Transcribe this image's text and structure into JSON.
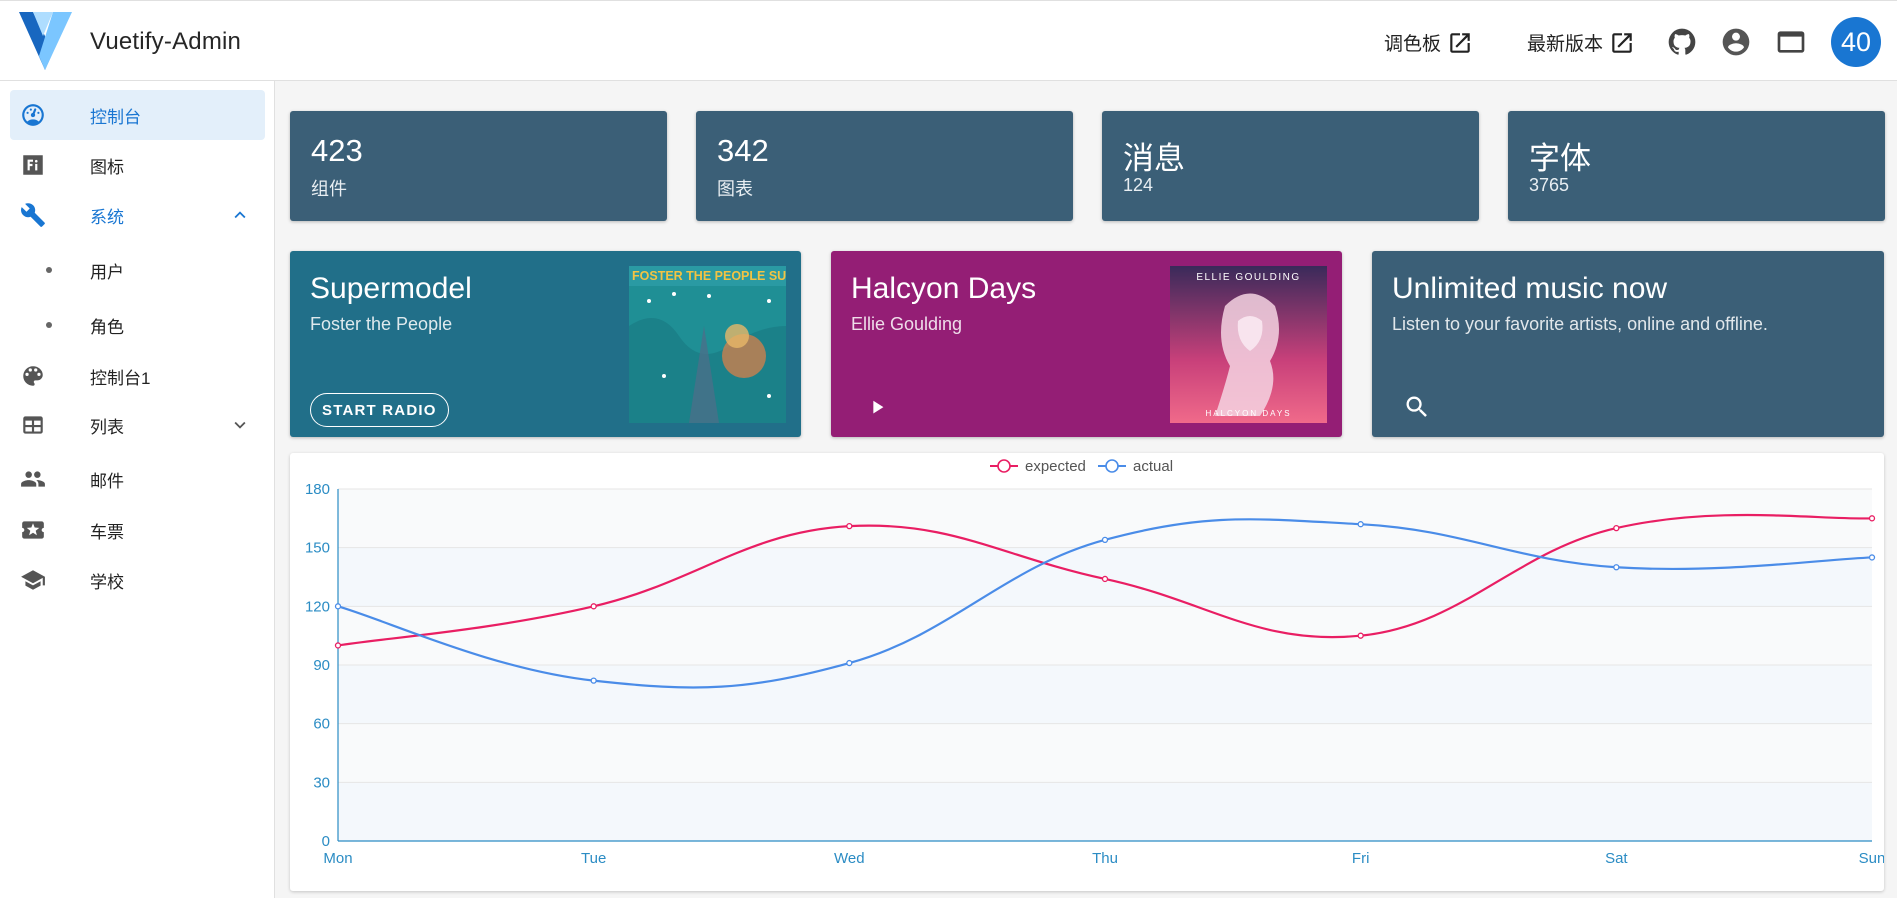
{
  "header": {
    "title": "Vuetify-Admin",
    "palette_link": "调色板",
    "latest_link": "最新版本",
    "avatar_text": "40"
  },
  "sidebar": {
    "items": [
      {
        "label": "控制台",
        "icon": "dashboard-icon"
      },
      {
        "label": "图标",
        "icon": "font-icon"
      },
      {
        "label": "系统",
        "icon": "wrench-icon"
      },
      {
        "label": "用户",
        "icon": "dot"
      },
      {
        "label": "角色",
        "icon": "dot"
      },
      {
        "label": "控制台1",
        "icon": "dashboard-icon"
      },
      {
        "label": "列表",
        "icon": "table-icon"
      },
      {
        "label": "邮件",
        "icon": "people-icon"
      },
      {
        "label": "车票",
        "icon": "ticket-icon"
      },
      {
        "label": "学校",
        "icon": "school-icon"
      }
    ]
  },
  "stats": [
    {
      "value": "423",
      "label": "组件"
    },
    {
      "value": "342",
      "label": "图表"
    },
    {
      "value": "消息",
      "label": "124"
    },
    {
      "value": "字体",
      "label": "3765"
    }
  ],
  "music": [
    {
      "title": "Supermodel",
      "subtitle": "Foster the People",
      "button": "START RADIO",
      "cover_text": "FOSTER THE PEOPLE SUPERMODEL"
    },
    {
      "title": "Halcyon Days",
      "subtitle": "Ellie Goulding",
      "cover_top": "ELLIE GOULDING",
      "cover_bottom": "HALCYON DAYS"
    },
    {
      "title": "Unlimited music now",
      "subtitle": "Listen to your favorite artists, online and offline."
    }
  ],
  "colors": {
    "primary": "#1976d2",
    "stat_card": "#3b5f77",
    "music_teal": "#216f89",
    "music_purple": "#941e75",
    "expected": "#e91e63",
    "actual": "#4a8ce8",
    "axis": "#2b8cc4"
  },
  "chart_data": {
    "type": "line",
    "categories": [
      "Mon",
      "Tue",
      "Wed",
      "Thu",
      "Fri",
      "Sat",
      "Sun"
    ],
    "series": [
      {
        "name": "expected",
        "values": [
          100,
          120,
          161,
          134,
          105,
          160,
          165
        ]
      },
      {
        "name": "actual",
        "values": [
          120,
          82,
          91,
          154,
          162,
          140,
          145
        ]
      }
    ],
    "yticks": [
      0,
      30,
      60,
      90,
      120,
      150,
      180
    ],
    "ylim": [
      0,
      180
    ],
    "legend": "top-center",
    "smooth": true
  }
}
